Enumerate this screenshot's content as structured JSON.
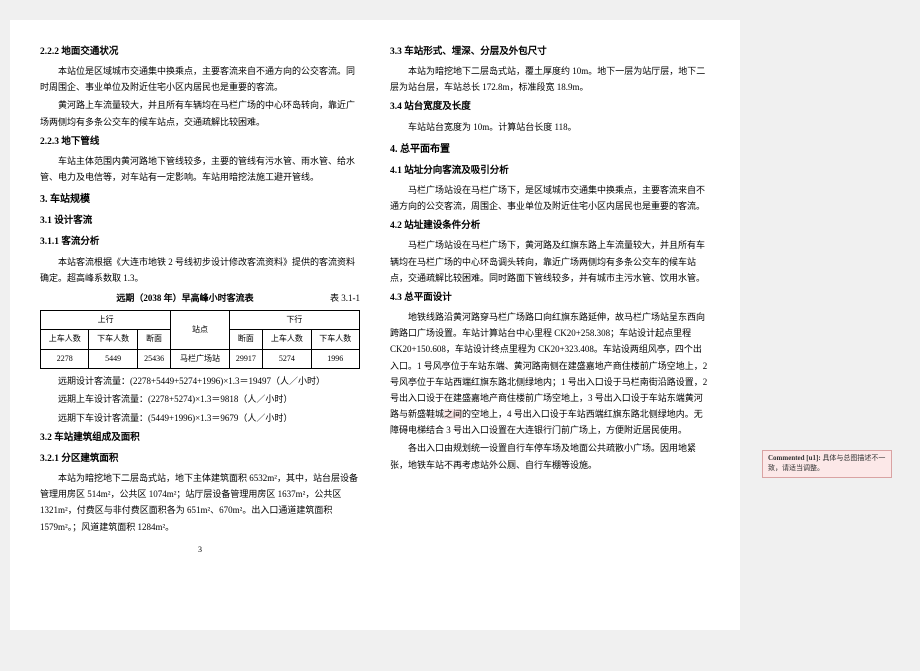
{
  "left": {
    "s222_title": "2.2.2 地面交通状况",
    "s222_p1": "本站位是区域城市交通集中换乘点，主要客流来自不通方向的公交客流。同时周围企、事业单位及附近住宅小区内居民也是重要的客流。",
    "s222_p2": "黄河路上车流量较大，并且所有车辆均在马栏广场的中心环岛转向，靠近广场两侧均有多条公交车的候车站点，交通疏解比较困难。",
    "s223_title": "2.2.3 地下管线",
    "s223_p1": "车站主体范围内黄河路地下管线较多，主要的管线有污水管、雨水管、给水管、电力及电信等，对车站有一定影响。车站用暗挖法施工避开管线。",
    "s3_title": "3. 车站规模",
    "s31_title": "3.1 设计客流",
    "s311_title": "3.1.1 客流分析",
    "s311_p1": "本站客流根据《大连市地铁 2 号线初步设计修改客流资料》提供的客流资料确定。超高峰系数取 1.3。",
    "table_title": "远期（2038 年）早高峰小时客流表",
    "table_no": "表 3.1-1",
    "th_up": "上行",
    "th_station": "站点",
    "th_down": "下行",
    "th_on": "上车人数",
    "th_off": "下车人数",
    "th_section": "断面",
    "r_on": "2278",
    "r_off": "5449",
    "r_sec": "25436",
    "r_name": "马栏广场站",
    "r_sec2": "29917",
    "r_on2": "5274",
    "r_off2": "1996",
    "calc1": "远期设计客流量：(2278+5449+5274+1996)×1.3＝19497（人／小时）",
    "calc2": "远期上车设计客流量：(2278+5274)×1.3＝9818（人／小时）",
    "calc3": "远期下车设计客流量：(5449+1996)×1.3＝9679（人／小时）",
    "s32_title": "3.2 车站建筑组成及面积",
    "s321_title": "3.2.1 分区建筑面积",
    "s321_p1": "本站为暗挖地下二层岛式站，地下主体建筑面积 6532m²，其中，站台层设备管理用房区 514m²，公共区 1074m²；站厅层设备管理用房区 1637m²，公共区 1321m²，付费区与非付费区面积各为 651m²、670m²。出入口通道建筑面积 1579m²。；风道建筑面积 1284m²。",
    "pagenum": "3"
  },
  "right": {
    "s33_title": "3.3 车站形式、埋深、分层及外包尺寸",
    "s33_p1": "本站为暗挖地下二层岛式站，覆土厚度约 10m。地下一层为站厅层，地下二层为站台层，车站总长 172.8m，标准段宽 18.9m。",
    "s34_title": "3.4 站台宽度及长度",
    "s34_p1": "车站站台宽度为 10m。计算站台长度 118。",
    "s4_title": "4. 总平面布置",
    "s41_title": "4.1 站址分向客流及吸引分析",
    "s41_p1": "马栏广场站设在马栏广场下，是区域城市交通集中换乘点，主要客流来自不通方向的公交客流，周围企、事业单位及附近住宅小区内居民也是重要的客流。",
    "s42_title": "4.2 站址建设条件分析",
    "s42_p1": "马栏广场站设在马栏广场下，黄河路及红旗东路上车流量较大，并且所有车辆均在马栏广场的中心环岛调头转向，靠近广场两侧均有多条公交车的候车站点，交通疏解比较困难。同时路面下管线较多，并有城市主污水管、饮用水管。",
    "s43_title": "4.3 总平面设计",
    "s43_p1": "地铁线路沿黄河路穿马栏广场路口向红旗东路延伸，故马栏广场站呈东西向跨路口广场设置。车站计算站台中心里程 CK20+258.308；车站设计起点里程 CK20+150.608，车站设计终点里程为 CK20+323.408。车站设两组风亭，四个出入口。1 号风亭位于车站东端、黄河路南侧在建盛嘉地产商住楼前广场空地上，2 号风亭位于车站西端红旗东路北侧绿地内；1 号出入口设于马栏南街沿路设置，2 号出入口设于在建盛嘉地产商住楼前广场空地上，3 号出入口设于车站东端黄河路与新盛鞋城",
    "s43_hl": "之间",
    "s43_p1b": "的空地上，4 号出入口设于车站西端红旗东路北侧绿地内。无障碍电梯结合 3 号出入口设置在大连银行门前广场上，方便附近居民使用。",
    "s43_p2": "各出入口由规划统一设置自行车停车场及地面公共疏散小广场。因用地紧张，地铁车站不再考虑站外公厕、自行车棚等设施。"
  },
  "comment": {
    "label": "Commented [u1]:",
    "text": " 具体与总图描述不一致，请适当调整。"
  }
}
